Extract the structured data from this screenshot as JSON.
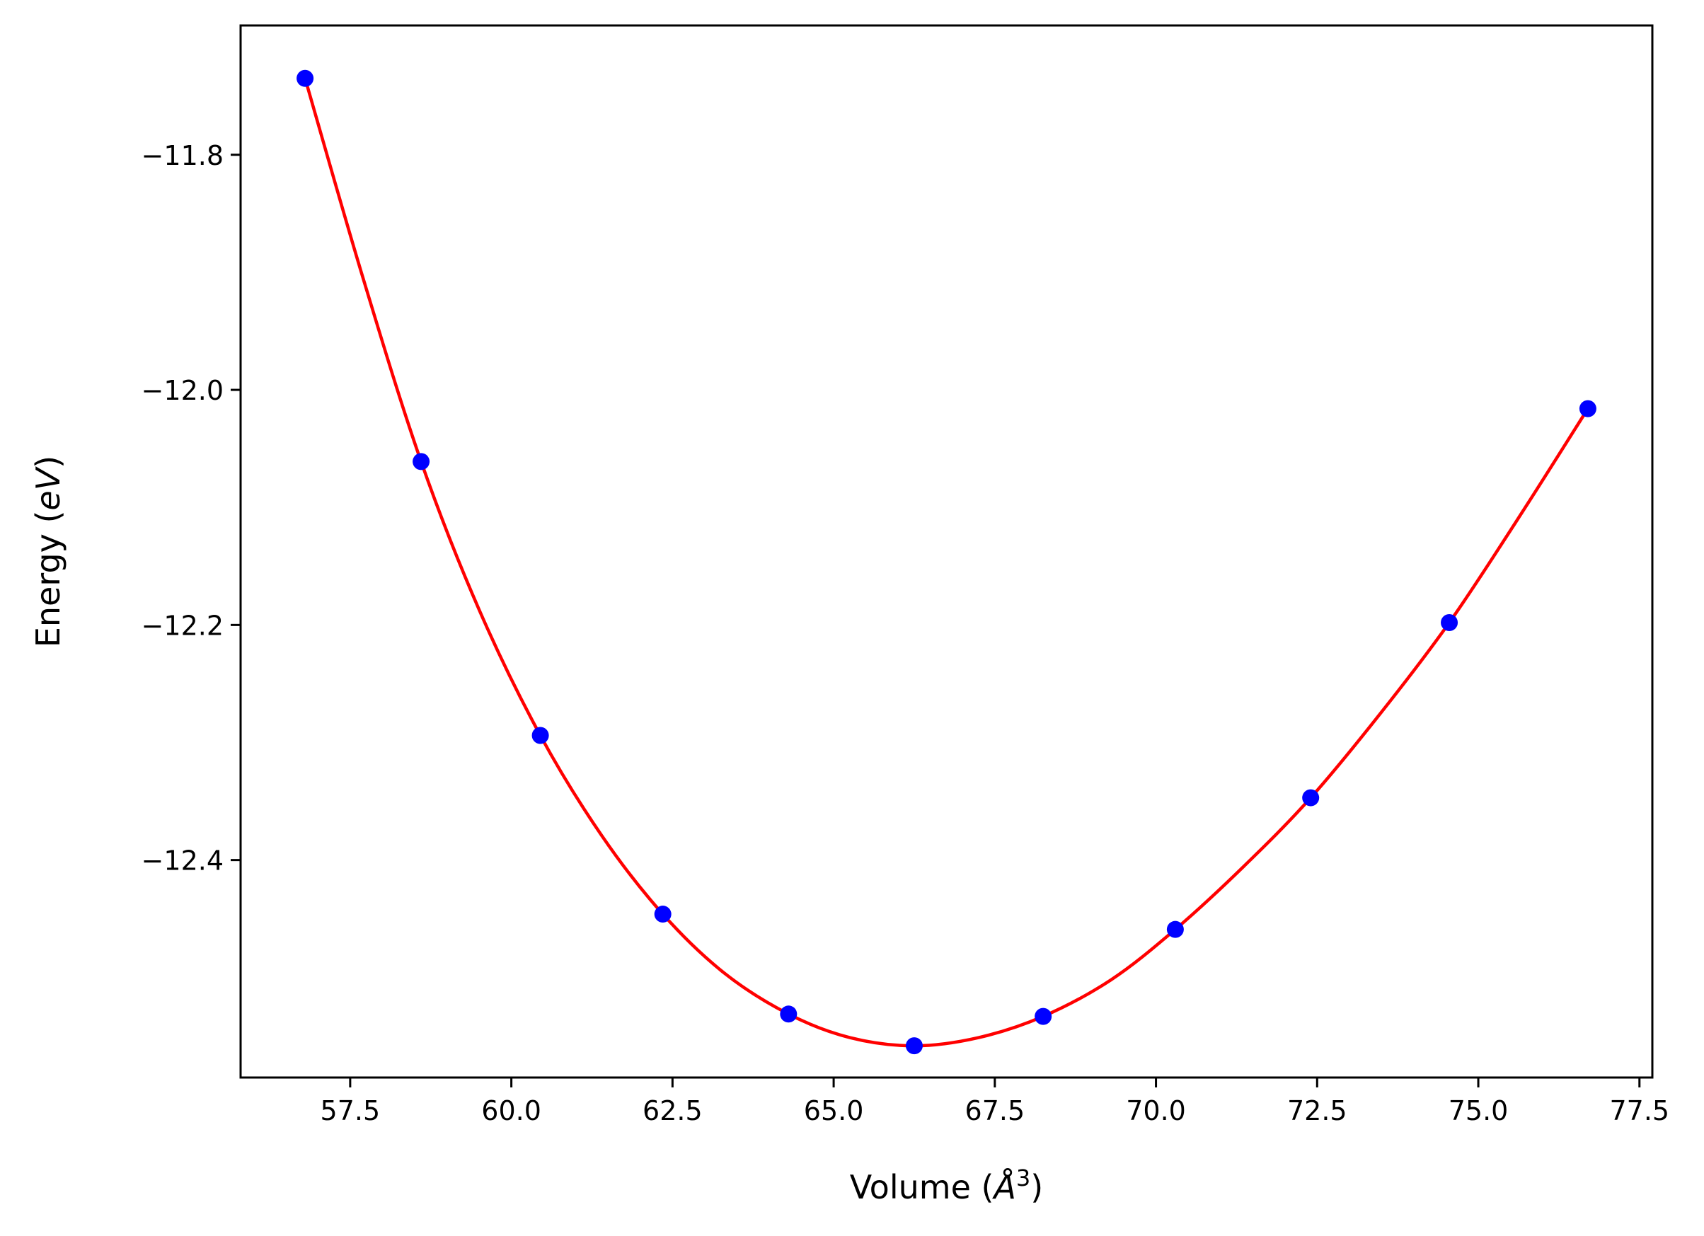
{
  "chart_data": {
    "type": "line",
    "title": "",
    "xlabel": {
      "prefix": "Volume (",
      "unit": "Å",
      "power": "3",
      "suffix": ")"
    },
    "ylabel": {
      "prefix": "Energy (",
      "unit": "eV",
      "suffix": ")"
    },
    "xlim": [
      55.8,
      77.7
    ],
    "ylim": [
      -12.585,
      -11.69
    ],
    "x_ticks": [
      57.5,
      60.0,
      62.5,
      65.0,
      67.5,
      70.0,
      72.5,
      75.0,
      77.5
    ],
    "x_tick_labels": [
      "57.5",
      "60.0",
      "62.5",
      "65.0",
      "67.5",
      "70.0",
      "72.5",
      "75.0",
      "77.5"
    ],
    "y_ticks": [
      -11.8,
      -12.0,
      -12.2,
      -12.4
    ],
    "y_tick_labels": [
      "−11.8",
      "−12.0",
      "−12.2",
      "−12.4"
    ],
    "grid": false,
    "series": [
      {
        "kind": "points",
        "color": "#0000ff",
        "x": [
          56.8,
          58.6,
          60.45,
          62.35,
          64.3,
          66.25,
          68.25,
          70.3,
          72.4,
          74.55,
          76.7
        ],
        "y": [
          -11.735,
          -12.061,
          -12.294,
          -12.446,
          -12.531,
          -12.558,
          -12.533,
          -12.459,
          -12.347,
          -12.198,
          -12.016
        ]
      },
      {
        "kind": "fit",
        "color": "#ff0000",
        "x": [
          56.8,
          57.7,
          58.6,
          59.5,
          60.45,
          61.4,
          62.35,
          63.3,
          64.3,
          65.25,
          66.25,
          67.25,
          68.25,
          69.3,
          70.3,
          71.35,
          72.4,
          73.5,
          74.55,
          75.6,
          76.7
        ],
        "y": [
          -11.735,
          -11.905,
          -12.061,
          -12.187,
          -12.294,
          -12.379,
          -12.446,
          -12.496,
          -12.531,
          -12.551,
          -12.558,
          -12.551,
          -12.533,
          -12.502,
          -12.459,
          -12.406,
          -12.347,
          -12.274,
          -12.198,
          -12.111,
          -12.016
        ]
      }
    ]
  }
}
